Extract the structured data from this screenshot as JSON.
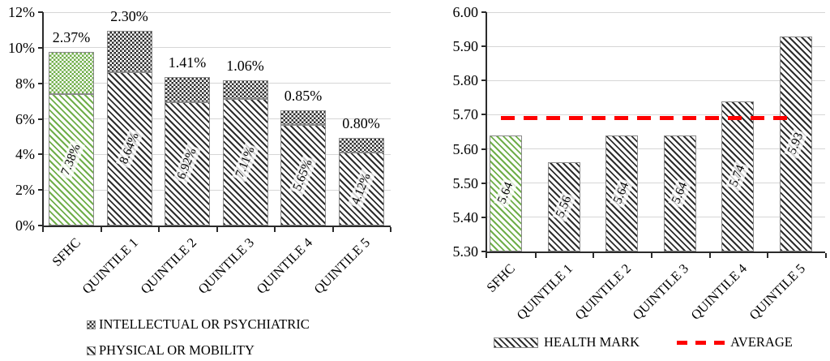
{
  "chart_data": [
    {
      "id": "disability",
      "type": "bar",
      "subtype": "stacked",
      "categories": [
        "SFHC",
        "QUINTILE 1",
        "QUINTILE 2",
        "QUINTILE 3",
        "QUINTILE 4",
        "QUINTILE 5"
      ],
      "series": [
        {
          "name": "PHYSICAL OR MOBILITY",
          "pattern": "hatch",
          "values": [
            7.38,
            8.64,
            6.92,
            7.11,
            5.65,
            4.12
          ],
          "labels": [
            "7.38%",
            "8.64%",
            "6.92%",
            "7.11%",
            "5.65%",
            "4.12%"
          ]
        },
        {
          "name": "INTELLECTUAL OR PSYCHIATRIC",
          "pattern": "cross",
          "values": [
            2.37,
            2.3,
            1.41,
            1.06,
            0.85,
            0.8
          ],
          "labels": [
            "2.37%",
            "2.30%",
            "1.41%",
            "1.06%",
            "0.85%",
            "0.80%"
          ]
        }
      ],
      "ylim": [
        0,
        12
      ],
      "ytick_labels": [
        "0%",
        "2%",
        "4%",
        "6%",
        "8%",
        "10%",
        "12%"
      ],
      "grid": true,
      "legend_position": "bottom",
      "legend_items": [
        {
          "label": "INTELLECTUAL OR PSYCHIATRIC",
          "pattern": "cross"
        },
        {
          "label": "PHYSICAL OR MOBILITY",
          "pattern": "hatch"
        }
      ],
      "highlight_category": "SFHC",
      "colors": {
        "highlight": "#6FAE49",
        "default": "#2D2D2D"
      }
    },
    {
      "id": "healthmark",
      "type": "bar",
      "subtype": "absolute",
      "categories": [
        "SFHC",
        "QUINTILE 1",
        "QUINTILE 2",
        "QUINTILE 3",
        "QUINTILE 4",
        "QUINTILE 5"
      ],
      "series": [
        {
          "name": "HEALTH MARK",
          "pattern": "hatch",
          "values": [
            5.64,
            5.56,
            5.64,
            5.64,
            5.74,
            5.93
          ],
          "labels": [
            "5.64",
            "5.56",
            "5.64",
            "5.64",
            "5.74",
            "5.93"
          ]
        }
      ],
      "average_line": {
        "label": "AVERAGE",
        "value": 5.69,
        "color": "#FE0000"
      },
      "ylim": [
        5.3,
        6.0
      ],
      "ytick_labels": [
        "5.30",
        "5.40",
        "5.50",
        "5.60",
        "5.70",
        "5.80",
        "5.90",
        "6.00"
      ],
      "grid": true,
      "legend_position": "bottom",
      "legend_items": [
        {
          "label": "HEALTH MARK",
          "pattern": "hatch"
        },
        {
          "label": "AVERAGE",
          "pattern": "dash"
        }
      ],
      "highlight_category": "SFHC",
      "colors": {
        "highlight": "#6FAE49",
        "default": "#2D2D2D"
      }
    }
  ]
}
